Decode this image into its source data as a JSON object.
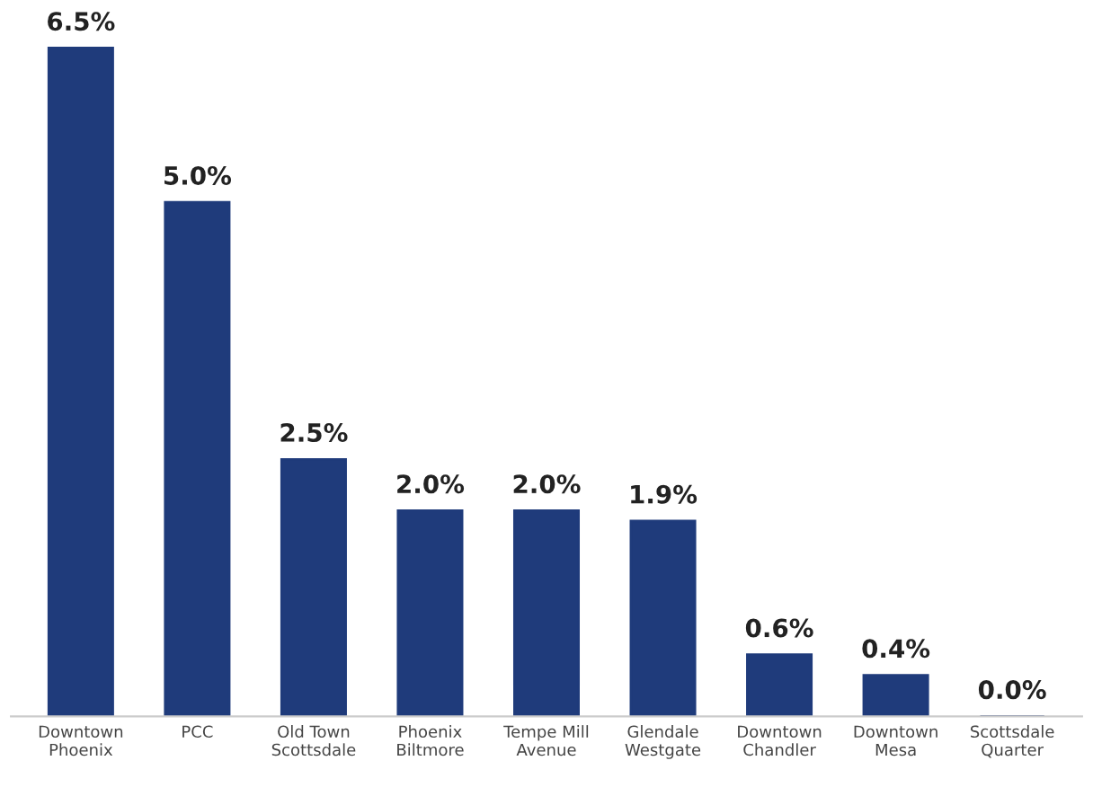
{
  "chart_data": {
    "type": "bar",
    "categories": [
      "Downtown Phoenix",
      "PCC",
      "Old Town Scottsdale",
      "Phoenix Biltmore",
      "Tempe Mill Avenue",
      "Glendale Westgate",
      "Downtown Chandler",
      "Downtown Mesa",
      "Scottsdale Quarter"
    ],
    "values": [
      6.5,
      5.0,
      2.5,
      2.0,
      2.0,
      1.9,
      0.6,
      0.4,
      0.0
    ],
    "value_labels": [
      "6.5%",
      "5.0%",
      "2.5%",
      "2.0%",
      "2.0%",
      "1.9%",
      "0.6%",
      "0.4%",
      "0.0%"
    ],
    "color": "#1f3b7b",
    "grid": false,
    "legend": false
  }
}
